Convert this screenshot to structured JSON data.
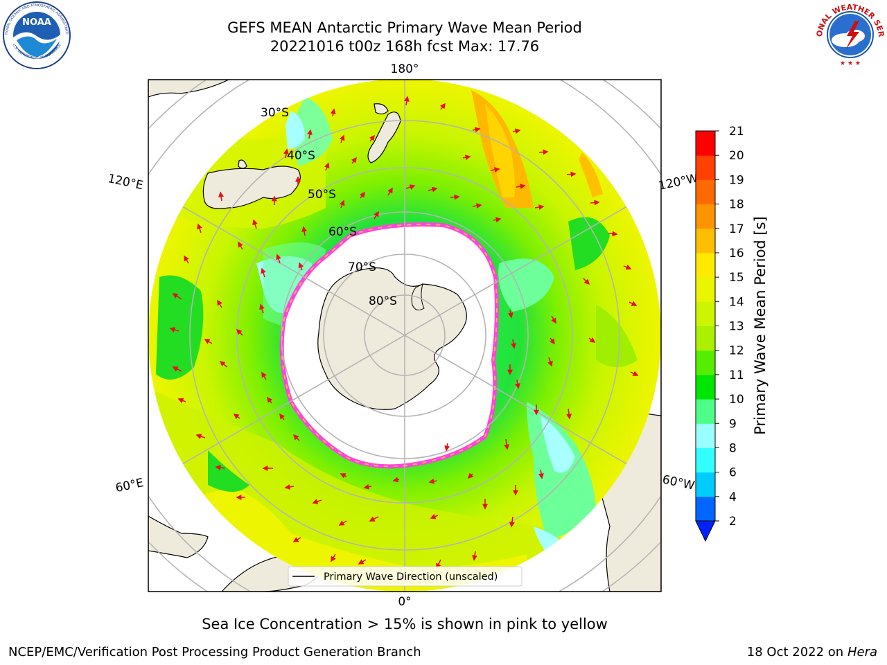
{
  "header": {
    "title_line1": "GEFS MEAN Antarctic Primary Wave Mean Period",
    "title_line2": "20221016 t00z 168h fcst   Max: 17.76"
  },
  "logos": {
    "noaa_text": "NOAA",
    "noaa_ring": "NATIONAL OCEANIC AND ATMOSPHERIC ADMINISTRATION",
    "noaa_ring_bottom": "U.S. DEPARTMENT OF COMMERCE",
    "nws_ring": "NATIONAL WEATHER SERVICE"
  },
  "map": {
    "projection": "south-polar-stereographic",
    "longitude_labels": {
      "top": "180°",
      "bottom": "0°",
      "upper_left": "120°E",
      "upper_right": "120°W",
      "lower_left": "60°E",
      "lower_right": "60°W"
    },
    "latitude_labels": [
      "30°S",
      "40°S",
      "50°S",
      "60°S",
      "70°S",
      "80°S"
    ],
    "legend_label": "Primary Wave Direction (unscaled)",
    "arrow_color": "#e8101a",
    "land_color": "#efebdc",
    "ocean_no_data_color": "#ffffff"
  },
  "colorbar": {
    "label": "Primary Wave Mean Period [s]",
    "ticks": [
      "2",
      "4",
      "6",
      "8",
      "9",
      "10",
      "11",
      "12",
      "13",
      "14",
      "15",
      "16",
      "17",
      "18",
      "19",
      "20",
      "21"
    ],
    "colors": [
      "#0066ff",
      "#00ccff",
      "#33ffff",
      "#99ffff",
      "#4dff88",
      "#00e600",
      "#55ee00",
      "#aaf000",
      "#ccf500",
      "#eaf500",
      "#ffea00",
      "#ffbf00",
      "#ff9400",
      "#ff6a00",
      "#ff4000",
      "#ff0000"
    ],
    "extend_min_color": "#0022ff"
  },
  "caption": "Sea Ice Concentration > 15% is shown in pink to yellow",
  "footer": {
    "left": "NCEP/EMC/Verification Post Processing Product Generation Branch",
    "right_date": "18 Oct 2022 on ",
    "right_host": "Hera"
  }
}
